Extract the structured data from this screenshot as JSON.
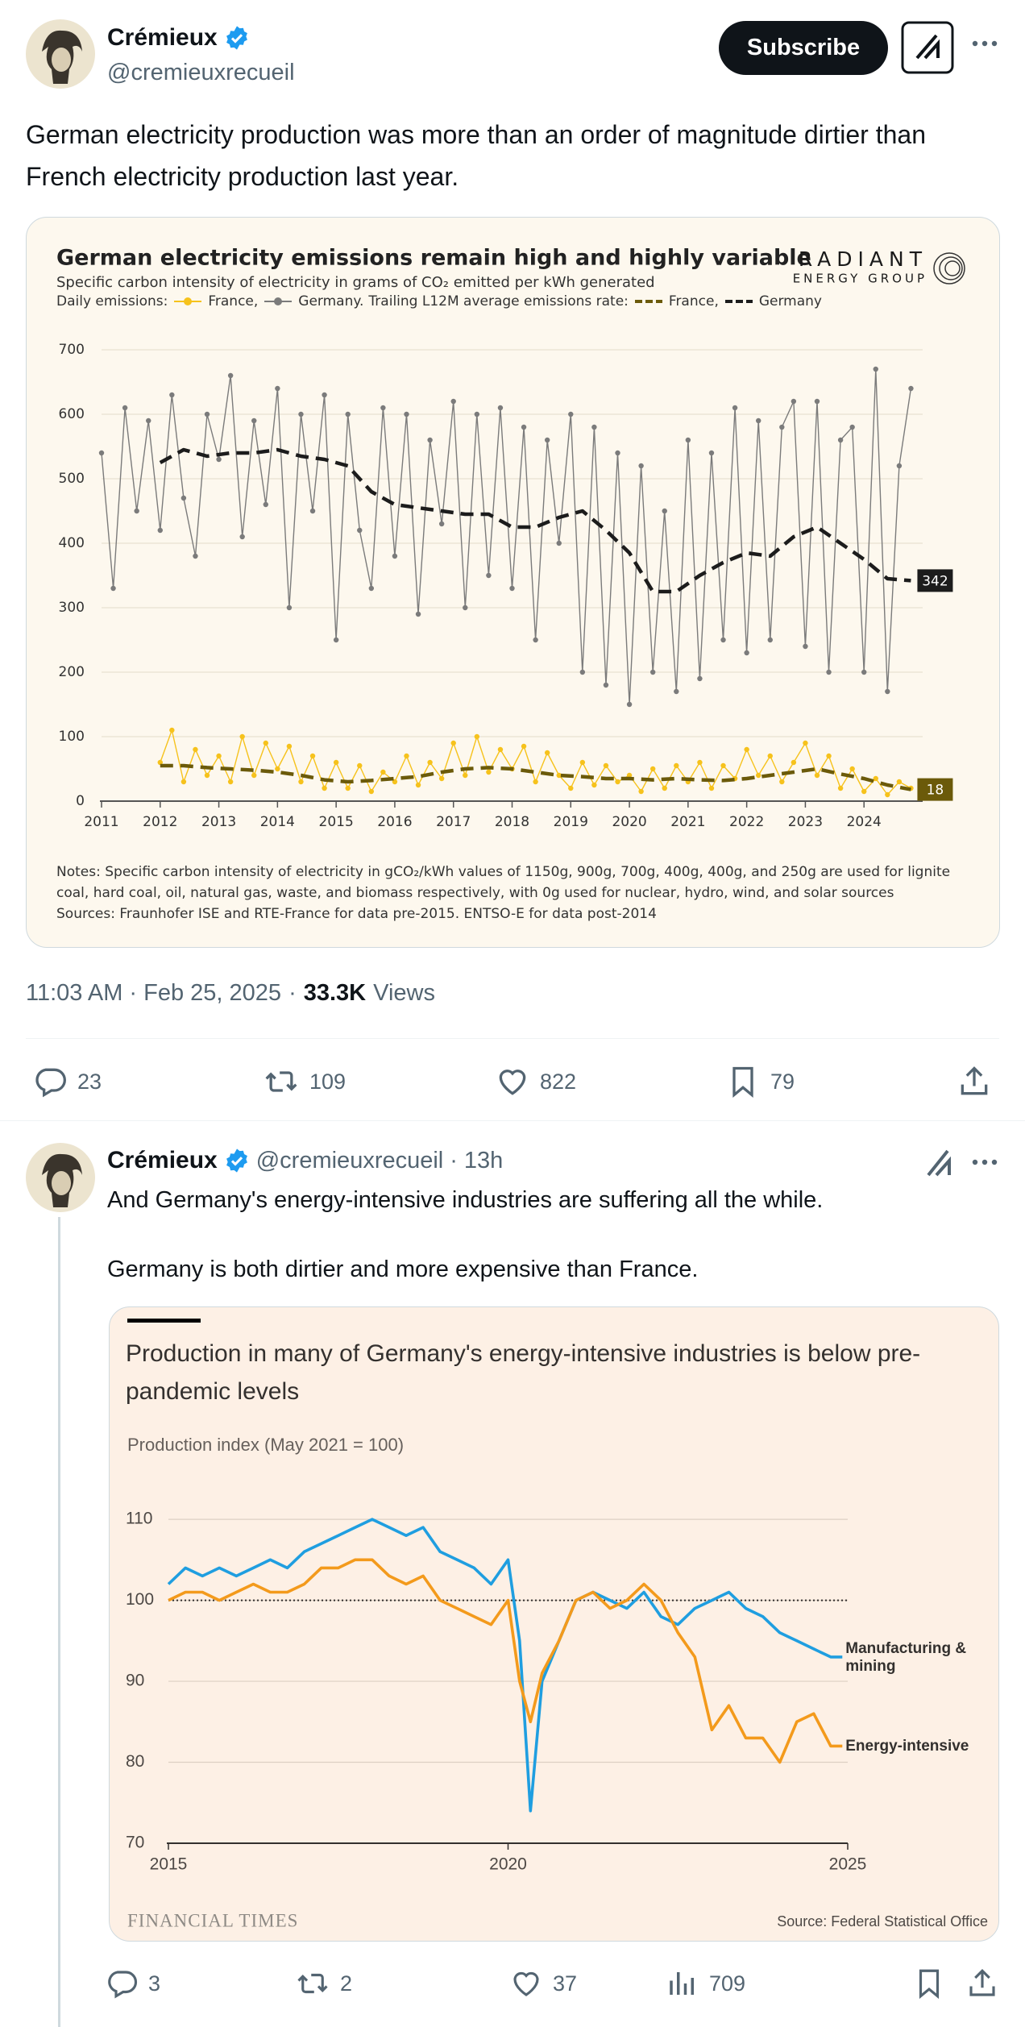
{
  "tweet": {
    "author": "Crémieux",
    "handle": "@cremieuxrecueil",
    "subscribe": "Subscribe",
    "text": "German electricity production was more than an order of magnitude dirtier than French electricity production last year.",
    "time": "11:03 AM · Feb 25, 2025",
    "separator": "·",
    "views": "33.3K",
    "views_label": "Views",
    "stats": {
      "replies": 23,
      "reposts": 109,
      "likes": 822,
      "bookmarks": 79
    }
  },
  "chart_data": [
    {
      "type": "line",
      "title": "German electricity emissions remain high and highly variable",
      "subtitle": "Specific carbon intensity of electricity in grams of CO₂ emitted per kWh generated",
      "brand": "RADIANT",
      "brand_sub": "ENERGY GROUP",
      "legend_groups": [
        "Daily emissions:",
        "Trailing L12M average emissions rate:"
      ],
      "legend_punctuation": [
        ",",
        ".",
        ",",
        ""
      ],
      "xlim": [
        2011,
        2025
      ],
      "xticks": [
        2011,
        2012,
        2013,
        2014,
        2015,
        2016,
        2017,
        2018,
        2019,
        2020,
        2021,
        2022,
        2023,
        2024
      ],
      "ylim": [
        0,
        700
      ],
      "yticks": [
        0,
        100,
        200,
        300,
        400,
        500,
        600,
        700
      ],
      "grid": true,
      "notes": [
        "Notes: Specific carbon intensity of electricity in gCO₂/kWh values of 1150g, 900g, 700g, 400g, 400g, and 250g are used for lignite",
        "coal, hard coal, oil, natural gas, waste, and biomass respectively, with 0g used for nuclear, hydro, wind, and solar sources",
        "Sources: Fraunhofer ISE and RTE-France for data pre-2015. ENTSO-E for data post-2014"
      ],
      "series": [
        {
          "name": "France",
          "color": "#f6c21c",
          "markers": true,
          "dashed": false,
          "x": [
            2012,
            2012.2,
            2012.4,
            2012.6,
            2012.8,
            2013,
            2013.2,
            2013.4,
            2013.6,
            2013.8,
            2014,
            2014.2,
            2014.4,
            2014.6,
            2014.8,
            2015,
            2015.2,
            2015.4,
            2015.6,
            2015.8,
            2016,
            2016.2,
            2016.4,
            2016.6,
            2016.8,
            2017,
            2017.2,
            2017.4,
            2017.6,
            2017.8,
            2018,
            2018.2,
            2018.4,
            2018.6,
            2018.8,
            2019,
            2019.2,
            2019.4,
            2019.6,
            2019.8,
            2020,
            2020.2,
            2020.4,
            2020.6,
            2020.8,
            2021,
            2021.2,
            2021.4,
            2021.6,
            2021.8,
            2022,
            2022.2,
            2022.4,
            2022.6,
            2022.8,
            2023,
            2023.2,
            2023.4,
            2023.6,
            2023.8,
            2024,
            2024.2,
            2024.4,
            2024.6,
            2024.8
          ],
          "values": [
            60,
            110,
            30,
            80,
            40,
            70,
            30,
            100,
            40,
            90,
            50,
            85,
            30,
            70,
            20,
            60,
            20,
            55,
            15,
            45,
            30,
            70,
            25,
            60,
            35,
            90,
            40,
            100,
            45,
            80,
            50,
            85,
            30,
            75,
            40,
            20,
            60,
            25,
            55,
            30,
            40,
            15,
            50,
            20,
            55,
            30,
            60,
            20,
            55,
            35,
            80,
            40,
            70,
            30,
            60,
            90,
            40,
            70,
            20,
            50,
            15,
            35,
            10,
            30,
            20
          ]
        },
        {
          "name": "Germany",
          "color": "#7b7b7b",
          "markers": true,
          "dashed": false,
          "x": [
            2011,
            2011.2,
            2011.4,
            2011.6,
            2011.8,
            2012,
            2012.2,
            2012.4,
            2012.6,
            2012.8,
            2013,
            2013.2,
            2013.4,
            2013.6,
            2013.8,
            2014,
            2014.2,
            2014.4,
            2014.6,
            2014.8,
            2015,
            2015.2,
            2015.4,
            2015.6,
            2015.8,
            2016,
            2016.2,
            2016.4,
            2016.6,
            2016.8,
            2017,
            2017.2,
            2017.4,
            2017.6,
            2017.8,
            2018,
            2018.2,
            2018.4,
            2018.6,
            2018.8,
            2019,
            2019.2,
            2019.4,
            2019.6,
            2019.8,
            2020,
            2020.2,
            2020.4,
            2020.6,
            2020.8,
            2021,
            2021.2,
            2021.4,
            2021.6,
            2021.8,
            2022,
            2022.2,
            2022.4,
            2022.6,
            2022.8,
            2023,
            2023.2,
            2023.4,
            2023.6,
            2023.8,
            2024,
            2024.2,
            2024.4,
            2024.6,
            2024.8
          ],
          "values": [
            540,
            330,
            610,
            450,
            590,
            420,
            630,
            470,
            380,
            600,
            530,
            660,
            410,
            590,
            460,
            640,
            300,
            600,
            450,
            630,
            250,
            600,
            420,
            330,
            610,
            380,
            600,
            290,
            560,
            430,
            620,
            300,
            600,
            350,
            610,
            330,
            580,
            250,
            560,
            400,
            600,
            200,
            580,
            180,
            540,
            150,
            520,
            200,
            450,
            170,
            560,
            190,
            540,
            250,
            610,
            230,
            590,
            250,
            580,
            620,
            240,
            620,
            200,
            560,
            580,
            200,
            670,
            170,
            520,
            640
          ]
        },
        {
          "name": "France",
          "color": "#6b5a0a",
          "markers": false,
          "dashed": true,
          "x": [
            2012,
            2012.4,
            2012.8,
            2013.2,
            2013.6,
            2014,
            2014.4,
            2014.8,
            2015.2,
            2015.6,
            2016,
            2016.4,
            2016.8,
            2017.2,
            2017.6,
            2018,
            2018.4,
            2018.8,
            2019.2,
            2019.6,
            2020,
            2020.4,
            2020.8,
            2021.2,
            2021.6,
            2022,
            2022.4,
            2022.8,
            2023.2,
            2023.6,
            2024,
            2024.4,
            2024.8
          ],
          "values": [
            55,
            55,
            52,
            50,
            48,
            45,
            40,
            33,
            30,
            32,
            35,
            38,
            45,
            50,
            52,
            50,
            45,
            40,
            38,
            35,
            35,
            33,
            35,
            33,
            32,
            35,
            40,
            45,
            50,
            42,
            35,
            25,
            18
          ],
          "value_labels": [
            null,
            null,
            null,
            null,
            null,
            null,
            null,
            null,
            null,
            null,
            null,
            null,
            null,
            null,
            null,
            null,
            null,
            null,
            null,
            null,
            null,
            null,
            null,
            null,
            null,
            null,
            null,
            null,
            null,
            null,
            null,
            null,
            "18"
          ]
        },
        {
          "name": "Germany",
          "color": "#1c1c1c",
          "markers": false,
          "dashed": true,
          "x": [
            2012,
            2012.4,
            2012.8,
            2013.2,
            2013.6,
            2014,
            2014.4,
            2014.8,
            2015.2,
            2015.6,
            2016,
            2016.4,
            2016.8,
            2017.2,
            2017.6,
            2018,
            2018.4,
            2018.8,
            2019.2,
            2019.6,
            2020,
            2020.4,
            2020.8,
            2021.2,
            2021.6,
            2022,
            2022.4,
            2022.8,
            2023.2,
            2023.6,
            2024,
            2024.4,
            2024.8
          ],
          "values": [
            525,
            545,
            535,
            540,
            540,
            545,
            535,
            530,
            520,
            480,
            460,
            455,
            450,
            445,
            445,
            425,
            425,
            440,
            450,
            420,
            385,
            325,
            325,
            350,
            370,
            385,
            380,
            410,
            425,
            400,
            375,
            345,
            342
          ],
          "value_labels": [
            null,
            null,
            null,
            null,
            null,
            null,
            null,
            null,
            null,
            null,
            null,
            null,
            null,
            null,
            null,
            null,
            null,
            null,
            null,
            null,
            null,
            null,
            null,
            null,
            null,
            null,
            null,
            null,
            null,
            null,
            null,
            null,
            "342"
          ]
        }
      ]
    },
    {
      "type": "line",
      "title": "Production in many of Germany's energy-intensive industries is below pre-pandemic levels",
      "subtitle": "Production index (May 2021 = 100)",
      "xlim": [
        2015,
        2025
      ],
      "xticks": [
        2015,
        2020,
        2025
      ],
      "ylim": [
        70,
        112
      ],
      "yticks": [
        70,
        80,
        90,
        100,
        110
      ],
      "grid": true,
      "reference_line": 100,
      "brand": "FINANCIAL TIMES",
      "source": "Source: Federal Statistical Office",
      "x": [
        2015,
        2015.25,
        2015.5,
        2015.75,
        2016,
        2016.25,
        2016.5,
        2016.75,
        2017,
        2017.25,
        2017.5,
        2017.75,
        2018,
        2018.25,
        2018.5,
        2018.75,
        2019,
        2019.25,
        2019.5,
        2019.75,
        2020,
        2020.17,
        2020.33,
        2020.5,
        2020.75,
        2021,
        2021.25,
        2021.5,
        2021.75,
        2022,
        2022.25,
        2022.5,
        2022.75,
        2023,
        2023.25,
        2023.5,
        2023.75,
        2024,
        2024.25,
        2024.5,
        2024.75,
        2024.92
      ],
      "series": [
        {
          "name": "Manufacturing & mining",
          "color": "#1f9ee0",
          "values": [
            102,
            104,
            103,
            104,
            103,
            104,
            105,
            104,
            106,
            107,
            108,
            109,
            110,
            109,
            108,
            109,
            106,
            105,
            104,
            102,
            105,
            95,
            74,
            90,
            95,
            100,
            101,
            100,
            99,
            101,
            98,
            97,
            99,
            100,
            101,
            99,
            98,
            96,
            95,
            94,
            93,
            93
          ]
        },
        {
          "name": "Energy-intensive",
          "color": "#f39a1c",
          "values": [
            100,
            101,
            101,
            100,
            101,
            102,
            101,
            101,
            102,
            104,
            104,
            105,
            105,
            103,
            102,
            103,
            100,
            99,
            98,
            97,
            100,
            90,
            85,
            91,
            95,
            100,
            101,
            99,
            100,
            102,
            100,
            96,
            93,
            84,
            87,
            83,
            83,
            80,
            85,
            86,
            82,
            82
          ]
        }
      ]
    }
  ],
  "reply": {
    "author": "Crémieux",
    "handle": "@cremieuxrecueil",
    "separator": "·",
    "age": "13h",
    "text": [
      "And Germany's energy-intensive industries are suffering all the while.",
      "Germany is both dirtier and more expensive than France."
    ],
    "stats": {
      "replies": 3,
      "reposts": 2,
      "likes": 37,
      "views": 709
    }
  }
}
